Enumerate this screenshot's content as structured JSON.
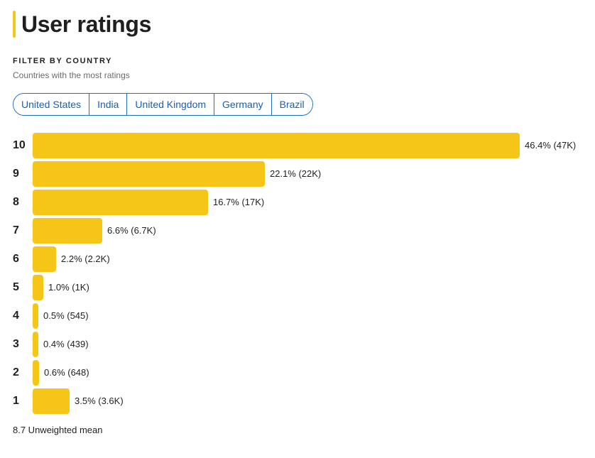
{
  "header": {
    "title": "User ratings",
    "accent_color": "#f5c518"
  },
  "filter": {
    "label": "FILTER BY COUNTRY",
    "subtitle": "Countries with the most ratings",
    "countries": [
      "United States",
      "India",
      "United Kingdom",
      "Germany",
      "Brazil"
    ],
    "chip_color": "#1a5fb4"
  },
  "chart_data": {
    "type": "bar",
    "orientation": "horizontal",
    "bar_color": "#f5c518",
    "categories": [
      "10",
      "9",
      "8",
      "7",
      "6",
      "5",
      "4",
      "3",
      "2",
      "1"
    ],
    "values": [
      46.4,
      22.1,
      16.7,
      6.6,
      2.2,
      1.0,
      0.5,
      0.4,
      0.6,
      3.5
    ],
    "counts": [
      "47K",
      "22K",
      "17K",
      "6.7K",
      "2.2K",
      "1K",
      "545",
      "439",
      "648",
      "3.6K"
    ],
    "labels": [
      "46.4% (47K)",
      "22.1% (22K)",
      "16.7% (17K)",
      "6.6% (6.7K)",
      "2.2% (2.2K)",
      "1.0% (1K)",
      "0.5% (545)",
      "0.4% (439)",
      "0.6% (648)",
      "3.5% (3.6K)"
    ]
  },
  "summary": {
    "mean_text": "8.7 Unweighted mean"
  }
}
